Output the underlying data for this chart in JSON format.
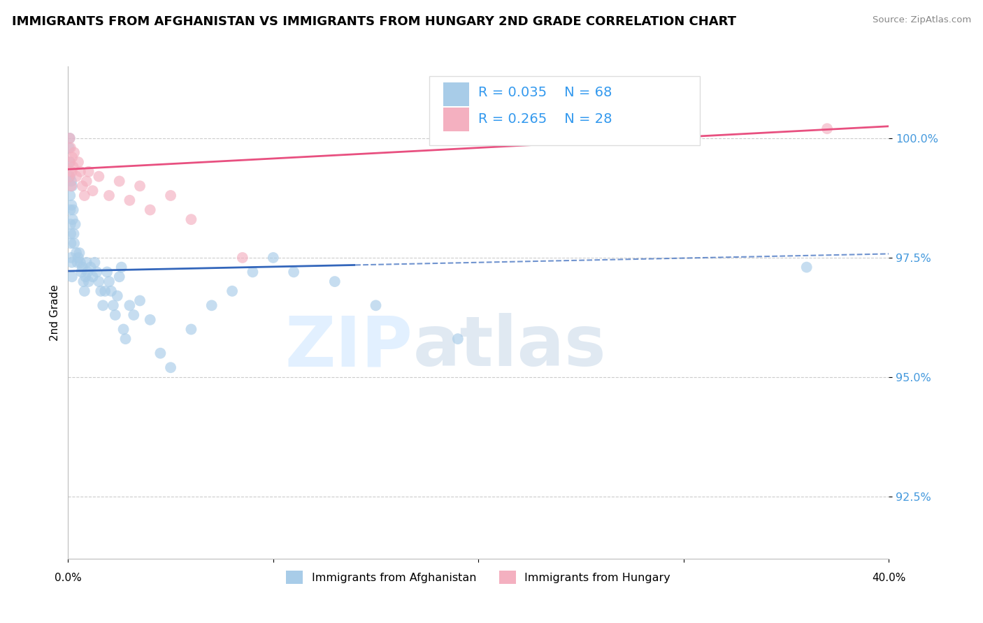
{
  "title": "IMMIGRANTS FROM AFGHANISTAN VS IMMIGRANTS FROM HUNGARY 2ND GRADE CORRELATION CHART",
  "source_text": "Source: ZipAtlas.com",
  "ylabel": "2nd Grade",
  "y_ticks": [
    92.5,
    95.0,
    97.5,
    100.0
  ],
  "y_tick_labels": [
    "92.5%",
    "95.0%",
    "97.5%",
    "100.0%"
  ],
  "xlim": [
    0.0,
    40.0
  ],
  "ylim": [
    91.2,
    101.5
  ],
  "series1_label": "Immigrants from Afghanistan",
  "series2_label": "Immigrants from Hungary",
  "series1_color": "#a8cce8",
  "series2_color": "#f4b0c0",
  "trendline1_color": "#3366bb",
  "trendline2_color": "#e85080",
  "watermark_zip": "ZIP",
  "watermark_atlas": "atlas",
  "legend_r1": "R = 0.035",
  "legend_n1": "N = 68",
  "legend_r2": "R = 0.265",
  "legend_n2": "N = 28",
  "af_trendline_x0": 0.0,
  "af_trendline_y0": 97.22,
  "af_trendline_x1": 40.0,
  "af_trendline_y1": 97.58,
  "hu_trendline_x0": 0.0,
  "hu_trendline_y0": 99.35,
  "hu_trendline_x1": 40.0,
  "hu_trendline_y1": 100.25,
  "af_solid_x1": 14.0,
  "afghanistan_x": [
    0.05,
    0.07,
    0.08,
    0.09,
    0.1,
    0.11,
    0.12,
    0.13,
    0.14,
    0.15,
    0.16,
    0.17,
    0.18,
    0.19,
    0.2,
    0.22,
    0.25,
    0.28,
    0.3,
    0.35,
    0.4,
    0.45,
    0.5,
    0.55,
    0.6,
    0.65,
    0.7,
    0.75,
    0.8,
    0.85,
    0.9,
    0.95,
    1.0,
    1.1,
    1.2,
    1.3,
    1.4,
    1.5,
    1.6,
    1.7,
    1.8,
    1.9,
    2.0,
    2.1,
    2.2,
    2.3,
    2.4,
    2.5,
    2.6,
    2.7,
    2.8,
    3.0,
    3.2,
    3.5,
    4.0,
    4.5,
    5.0,
    6.0,
    7.0,
    8.0,
    9.0,
    10.0,
    11.0,
    13.0,
    15.0,
    19.0,
    36.0
  ],
  "afghanistan_y": [
    99.8,
    99.5,
    100.0,
    99.2,
    98.8,
    98.5,
    98.2,
    98.0,
    97.8,
    97.5,
    99.1,
    98.6,
    97.4,
    97.1,
    99.0,
    98.3,
    98.5,
    98.0,
    97.8,
    98.2,
    97.6,
    97.4,
    97.5,
    97.6,
    97.4,
    97.2,
    97.3,
    97.0,
    96.8,
    97.1,
    97.4,
    97.2,
    97.0,
    97.3,
    97.1,
    97.4,
    97.2,
    97.0,
    96.8,
    96.5,
    96.8,
    97.2,
    97.0,
    96.8,
    96.5,
    96.3,
    96.7,
    97.1,
    97.3,
    96.0,
    95.8,
    96.5,
    96.3,
    96.6,
    96.2,
    95.5,
    95.2,
    96.0,
    96.5,
    96.8,
    97.2,
    97.5,
    97.2,
    97.0,
    96.5,
    95.8,
    97.3
  ],
  "hungary_x": [
    0.05,
    0.08,
    0.1,
    0.12,
    0.15,
    0.18,
    0.2,
    0.25,
    0.3,
    0.4,
    0.5,
    0.6,
    0.7,
    0.8,
    0.9,
    1.0,
    1.2,
    1.5,
    2.0,
    2.5,
    3.0,
    3.5,
    4.0,
    5.0,
    6.0,
    8.5,
    37.0
  ],
  "hungary_y": [
    99.2,
    100.0,
    99.5,
    99.8,
    99.0,
    99.3,
    99.6,
    99.4,
    99.7,
    99.2,
    99.5,
    99.3,
    99.0,
    98.8,
    99.1,
    99.3,
    98.9,
    99.2,
    98.8,
    99.1,
    98.7,
    99.0,
    98.5,
    98.8,
    98.3,
    97.5,
    100.2
  ]
}
